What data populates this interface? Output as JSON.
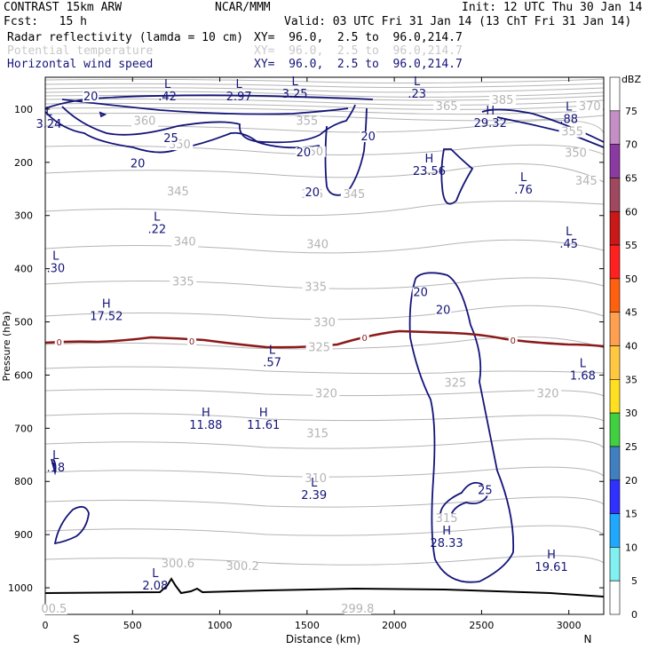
{
  "header": {
    "model": "CONTRAST 15km ARW",
    "center": "NCAR/MMM",
    "init": "Init: 12 UTC Thu 30 Jan 14",
    "fcst": "Fcst:   15 h",
    "valid": "Valid: 03 UTC Fri 31 Jan 14 (13 ChT Fri 31 Jan 14)"
  },
  "fields": [
    {
      "name": "Radar reflectivity (lamda = 10 cm)",
      "xy": "XY=  96.0,  2.5 to  96.0,214.7",
      "color": "#000000"
    },
    {
      "name": "Potential temperature",
      "xy": "XY=  96.0,  2.5 to  96.0,214.7",
      "color": "#c8c8c8"
    },
    {
      "name": "Horizontal wind speed",
      "xy": "XY=  96.0,  2.5 to  96.0,214.7",
      "color": "#14147a"
    }
  ],
  "chart_data": {
    "type": "cross-section",
    "xlabel": "Distance (km)",
    "ylabel": "Pressure (hPa)",
    "xlim": [
      0,
      3200
    ],
    "ylim": [
      1050,
      40
    ],
    "x_ticks": [
      0,
      500,
      1000,
      1500,
      2000,
      2500,
      3000
    ],
    "y_ticks": [
      100,
      200,
      300,
      400,
      500,
      600,
      700,
      800,
      900,
      1000
    ],
    "end_labels": {
      "left": "S",
      "right": "N"
    },
    "colorbar": {
      "title": "dBZ",
      "levels": [
        "75",
        "70",
        "65",
        "60",
        "55",
        "50",
        "45",
        "40",
        "35",
        "30",
        "25",
        "20",
        "15",
        "10",
        "5",
        "0"
      ],
      "colors": [
        "#ffffff",
        "#c48fc4",
        "#8a3aa0",
        "#a04860",
        "#c81818",
        "#ff2020",
        "#ff6010",
        "#ffa050",
        "#ffc840",
        "#ffe020",
        "#40d040",
        "#4080c0",
        "#3030ff",
        "#20a8ff",
        "#80f0f0",
        "#ffffff"
      ]
    },
    "theta_labels": [
      {
        "text": "385",
        "x": 2620,
        "p": 88
      },
      {
        "text": "370",
        "x": 3120,
        "p": 100
      },
      {
        "text": "365",
        "x": 2300,
        "p": 100
      },
      {
        "text": "360",
        "x": 570,
        "p": 128
      },
      {
        "text": "355",
        "x": 1500,
        "p": 128
      },
      {
        "text": "355",
        "x": 3020,
        "p": 148
      },
      {
        "text": "350",
        "x": 770,
        "p": 172
      },
      {
        "text": "350",
        "x": 1530,
        "p": 185
      },
      {
        "text": "350",
        "x": 3040,
        "p": 188
      },
      {
        "text": "345",
        "x": 760,
        "p": 260
      },
      {
        "text": "345",
        "x": 1530,
        "p": 265
      },
      {
        "text": "345",
        "x": 1770,
        "p": 265
      },
      {
        "text": "345",
        "x": 3100,
        "p": 240
      },
      {
        "text": "340",
        "x": 800,
        "p": 355
      },
      {
        "text": "340",
        "x": 1560,
        "p": 360
      },
      {
        "text": "335",
        "x": 790,
        "p": 430
      },
      {
        "text": "335",
        "x": 1550,
        "p": 440
      },
      {
        "text": "330",
        "x": 1600,
        "p": 507
      },
      {
        "text": "325",
        "x": 1570,
        "p": 553
      },
      {
        "text": "325",
        "x": 2350,
        "p": 620
      },
      {
        "text": "320",
        "x": 1610,
        "p": 640
      },
      {
        "text": "320",
        "x": 2880,
        "p": 640
      },
      {
        "text": "315",
        "x": 1560,
        "p": 715
      },
      {
        "text": "310",
        "x": 1550,
        "p": 800
      },
      {
        "text": "315",
        "x": 2300,
        "p": 875
      },
      {
        "text": "300.6",
        "x": 760,
        "p": 960
      },
      {
        "text": "300.2",
        "x": 1130,
        "p": 965
      },
      {
        "text": "299.8",
        "x": 1790,
        "p": 1045
      },
      {
        "text": "00.5",
        "x": 50,
        "p": 1045
      }
    ],
    "wind_labels": [
      {
        "text": "20",
        "x": 260,
        "p": 82
      },
      {
        "text": "25",
        "x": 720,
        "p": 160
      },
      {
        "text": "20",
        "x": 530,
        "p": 208
      },
      {
        "text": "20",
        "x": 1480,
        "p": 187
      },
      {
        "text": "20",
        "x": 1850,
        "p": 157
      },
      {
        "text": "20",
        "x": 1530,
        "p": 262
      },
      {
        "text": "20",
        "x": 2150,
        "p": 450
      },
      {
        "text": "20",
        "x": 2280,
        "p": 483
      },
      {
        "text": "25",
        "x": 2520,
        "p": 822
      }
    ],
    "zero_labels": [
      {
        "text": "0",
        "x": 80
      },
      {
        "text": "0",
        "x": 840
      },
      {
        "text": "0",
        "x": 1830
      },
      {
        "text": "0",
        "x": 2680
      }
    ],
    "extrema": [
      {
        "type": "L",
        "value": ".42",
        "x": 700,
        "p": 60
      },
      {
        "type": "L",
        "value": "2.97",
        "x": 1110,
        "p": 60
      },
      {
        "type": "L",
        "value": "3.25",
        "x": 1430,
        "p": 55
      },
      {
        "type": "L",
        "value": ".23",
        "x": 2130,
        "p": 55
      },
      {
        "type": "L",
        "value": "3.24",
        "x": 20,
        "p": 112
      },
      {
        "type": "L",
        "value": ".88",
        "x": 3000,
        "p": 103
      },
      {
        "type": "H",
        "value": "29.32",
        "x": 2550,
        "p": 110
      },
      {
        "type": "H",
        "value": "23.56",
        "x": 2200,
        "p": 200
      },
      {
        "type": "L",
        "value": ".76",
        "x": 2740,
        "p": 235
      },
      {
        "type": "L",
        "value": ".22",
        "x": 640,
        "p": 310
      },
      {
        "type": "L",
        "value": ".45",
        "x": 3000,
        "p": 337
      },
      {
        "type": "L",
        "value": ".30",
        "x": 60,
        "p": 383
      },
      {
        "type": "H",
        "value": "17.52",
        "x": 350,
        "p": 473
      },
      {
        "type": "L",
        "value": ".57",
        "x": 1300,
        "p": 560
      },
      {
        "type": "L",
        "value": "1.68",
        "x": 3080,
        "p": 585
      },
      {
        "type": "H",
        "value": "11.88",
        "x": 920,
        "p": 678
      },
      {
        "type": "H",
        "value": "11.61",
        "x": 1250,
        "p": 678
      },
      {
        "type": "L",
        "value": ".18",
        "x": 60,
        "p": 758
      },
      {
        "type": "L",
        "value": "2.39",
        "x": 1540,
        "p": 810
      },
      {
        "type": "H",
        "value": "28.33",
        "x": 2300,
        "p": 900
      },
      {
        "type": "H",
        "value": "19.61",
        "x": 2900,
        "p": 945
      },
      {
        "type": "L",
        "value": "2.08",
        "x": 630,
        "p": 980
      }
    ]
  }
}
